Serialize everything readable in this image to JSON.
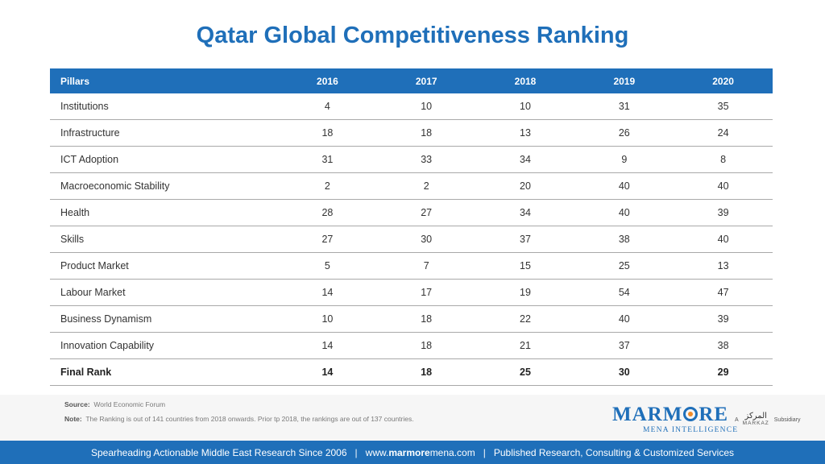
{
  "title": "Qatar Global Competitiveness Ranking",
  "table": {
    "headers": [
      "Pillars",
      "2016",
      "2017",
      "2018",
      "2019",
      "2020"
    ],
    "rows": [
      {
        "pillar": "Institutions",
        "values": [
          "4",
          "10",
          "10",
          "31",
          "35"
        ]
      },
      {
        "pillar": "Infrastructure",
        "values": [
          "18",
          "18",
          "13",
          "26",
          "24"
        ]
      },
      {
        "pillar": "ICT Adoption",
        "values": [
          "31",
          "33",
          "34",
          "9",
          "8"
        ]
      },
      {
        "pillar": "Macroeconomic Stability",
        "values": [
          "2",
          "2",
          "20",
          "40",
          "40"
        ]
      },
      {
        "pillar": "Health",
        "values": [
          "28",
          "27",
          "34",
          "40",
          "39"
        ]
      },
      {
        "pillar": "Skills",
        "values": [
          "27",
          "30",
          "37",
          "38",
          "40"
        ]
      },
      {
        "pillar": "Product Market",
        "values": [
          "5",
          "7",
          "15",
          "25",
          "13"
        ]
      },
      {
        "pillar": "Labour Market",
        "values": [
          "14",
          "17",
          "19",
          "54",
          "47"
        ]
      },
      {
        "pillar": "Business Dynamism",
        "values": [
          "10",
          "18",
          "22",
          "40",
          "39"
        ]
      },
      {
        "pillar": "Innovation Capability",
        "values": [
          "14",
          "18",
          "21",
          "37",
          "38"
        ]
      },
      {
        "pillar": "Final Rank",
        "values": [
          "14",
          "18",
          "25",
          "30",
          "29"
        ]
      }
    ]
  },
  "notes": {
    "source_label": "Source:",
    "source_text": "World Economic Forum",
    "note_label": "Note:",
    "note_text": "The Ranking is out of 141 countries from 2018 onwards. Prior tp 2018, the rankings are out of 137 countries."
  },
  "logo": {
    "main_left": "MARM",
    "main_right": "RE",
    "sub": "MENA INTELLIGENCE",
    "markaz_prefix": "A",
    "markaz_arabic": "المركز",
    "markaz_latin": "MARKAZ",
    "markaz_suffix": "Subsidiary"
  },
  "footer": {
    "tagline": "Spearheading Actionable Middle East Research Since 2006",
    "sep1": "|",
    "url_prefix": "www.",
    "url_bold": "marmore",
    "url_suffix": "mena.com",
    "sep2": "|",
    "services": "Published Research, Consulting & Customized Services"
  },
  "colors": {
    "accent": "#1f6fb9",
    "logo_dot": "#f28c28"
  }
}
